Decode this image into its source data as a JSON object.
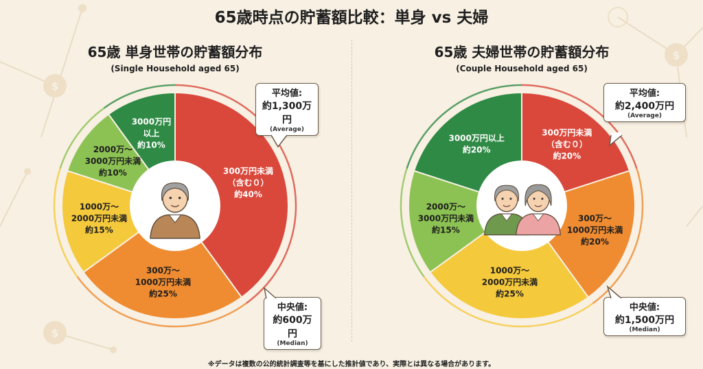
{
  "title": "65歳時点の貯蓄額比較：単身 vs 夫婦",
  "footnote": "※データは複数の公的統計調査等を基にした推計値であり、実際とは異なる場合があります。",
  "colors": {
    "background": "#f7f0e3",
    "red": "#d9483b",
    "orange": "#ef8b30",
    "yellow": "#f5c93c",
    "lightgreen": "#8cc253",
    "darkgreen": "#2f8a45"
  },
  "chart_data": [
    {
      "type": "pie",
      "title": "65歳 単身世帯の貯蓄額分布",
      "subtitle": "(Single Household aged 65)",
      "center_icon": "elderly-man-icon",
      "slices": [
        {
          "label": [
            "300万円未満",
            "（含む０）"
          ],
          "value": 40,
          "value_label": "約40%",
          "color": "#d9483b",
          "text_color": "#ffffff"
        },
        {
          "label": [
            "300万～",
            "1000万円未満"
          ],
          "value": 25,
          "value_label": "約25%",
          "color": "#ef8b30",
          "text_color": "#1e1e1e"
        },
        {
          "label": [
            "1000万～",
            "2000万円未満"
          ],
          "value": 15,
          "value_label": "約15%",
          "color": "#f5c93c",
          "text_color": "#1e1e1e"
        },
        {
          "label": [
            "2000万～",
            "3000万円未満"
          ],
          "value": 10,
          "value_label": "約10%",
          "color": "#8cc253",
          "text_color": "#1e1e1e"
        },
        {
          "label": [
            "3000万円",
            "以上"
          ],
          "value": 10,
          "value_label": "約10%",
          "color": "#2f8a45",
          "text_color": "#ffffff"
        }
      ],
      "average": {
        "label": "平均値:",
        "value": "約1,300万円",
        "en": "(Average)"
      },
      "median": {
        "label": "中央値:",
        "value": "約600万円",
        "en": "(Median)"
      }
    },
    {
      "type": "pie",
      "title": "65歳 夫婦世帯の貯蓄額分布",
      "subtitle": "(Couple Household aged 65)",
      "center_icon": "elderly-couple-icon",
      "slices": [
        {
          "label": [
            "300万円未満",
            "（含む０）"
          ],
          "value": 20,
          "value_label": "約20%",
          "color": "#d9483b",
          "text_color": "#ffffff"
        },
        {
          "label": [
            "300万～",
            "1000万円未満"
          ],
          "value": 20,
          "value_label": "約20%",
          "color": "#ef8b30",
          "text_color": "#1e1e1e"
        },
        {
          "label": [
            "1000万～",
            "2000万円未満"
          ],
          "value": 25,
          "value_label": "約25%",
          "color": "#f5c93c",
          "text_color": "#1e1e1e"
        },
        {
          "label": [
            "2000万～",
            "3000万円未満"
          ],
          "value": 15,
          "value_label": "約15%",
          "color": "#8cc253",
          "text_color": "#1e1e1e"
        },
        {
          "label": [
            "3000万円以上"
          ],
          "value": 20,
          "value_label": "約20%",
          "color": "#2f8a45",
          "text_color": "#ffffff"
        }
      ],
      "average": {
        "label": "平均値:",
        "value": "約2,400万円",
        "en": "(Average)"
      },
      "median": {
        "label": "中央値:",
        "value": "約1,500万円",
        "en": "(Median)"
      }
    }
  ]
}
